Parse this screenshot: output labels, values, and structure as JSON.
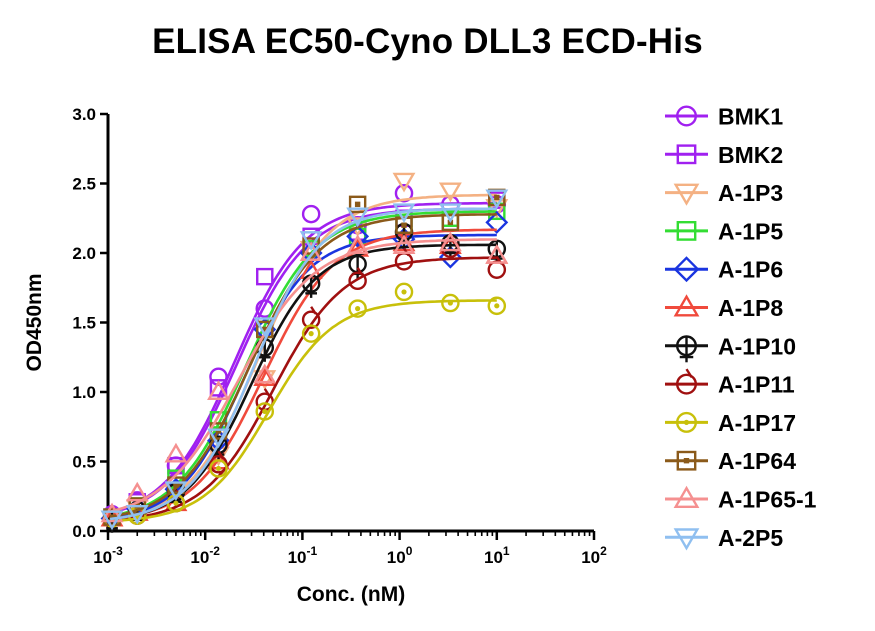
{
  "chart_data": {
    "type": "scatter",
    "title": "ELISA EC50-Cyno DLL3 ECD-His",
    "xlabel": "Conc. (nM)",
    "ylabel": "OD450nm",
    "x_scale": "log10",
    "xlim": [
      0.001,
      100
    ],
    "ylim": [
      0,
      3.0
    ],
    "x_tick_exponents": [
      "-3",
      "-2",
      "-1",
      "0",
      "1",
      "2"
    ],
    "x_tick_base": "10",
    "y_ticks": [
      "0.0",
      "0.5",
      "1.0",
      "1.5",
      "2.0",
      "2.5",
      "3.0"
    ],
    "legend_position": "right",
    "x": [
      0.0011,
      0.002,
      0.005,
      0.0137,
      0.041,
      0.123,
      0.37,
      1.11,
      3.33,
      10.0
    ],
    "series": [
      {
        "name": "BMK1",
        "color": "#a020f0",
        "marker": "circle",
        "values": [
          0.12,
          0.22,
          0.47,
          1.11,
          1.6,
          2.28,
          2.2,
          2.43,
          2.35,
          2.35
        ],
        "fit": {
          "bottom": 0.07,
          "top": 2.36,
          "ec50": 0.02,
          "hill": 1.2
        }
      },
      {
        "name": "BMK2",
        "color": "#a020f0",
        "marker": "square",
        "values": [
          0.1,
          0.21,
          0.47,
          1.03,
          1.83,
          2.12,
          2.15,
          2.25,
          2.22,
          2.38
        ],
        "fit": {
          "bottom": 0.07,
          "top": 2.32,
          "ec50": 0.021,
          "hill": 1.2
        }
      },
      {
        "name": "A-1P3",
        "color": "#f4b183",
        "marker": "triangle-down",
        "values": [
          0.09,
          0.17,
          0.27,
          0.55,
          1.1,
          2.03,
          2.2,
          2.52,
          2.45,
          2.33
        ],
        "fit": {
          "bottom": 0.06,
          "top": 2.42,
          "ec50": 0.035,
          "hill": 1.2
        }
      },
      {
        "name": "A-1P5",
        "color": "#33dd33",
        "marker": "square",
        "values": [
          0.1,
          0.18,
          0.38,
          0.8,
          1.45,
          2.03,
          2.12,
          2.2,
          2.25,
          2.3
        ],
        "fit": {
          "bottom": 0.06,
          "top": 2.3,
          "ec50": 0.026,
          "hill": 1.2
        }
      },
      {
        "name": "A-1P6",
        "color": "#1a35e0",
        "marker": "diamond",
        "values": [
          0.09,
          0.16,
          0.3,
          0.65,
          1.45,
          2.0,
          2.12,
          2.1,
          1.97,
          2.22
        ],
        "fit": {
          "bottom": 0.06,
          "top": 2.13,
          "ec50": 0.025,
          "hill": 1.3
        }
      },
      {
        "name": "A-1P8",
        "color": "#f04a3c",
        "marker": "triangle-up",
        "values": [
          0.09,
          0.13,
          0.2,
          0.5,
          1.1,
          1.87,
          2.03,
          2.07,
          2.05,
          1.98
        ],
        "fit": {
          "bottom": 0.06,
          "top": 2.17,
          "ec50": 0.04,
          "hill": 1.2
        }
      },
      {
        "name": "A-1P10",
        "color": "#111111",
        "marker": "cross-circle",
        "values": [
          0.09,
          0.15,
          0.28,
          0.62,
          1.32,
          1.78,
          1.92,
          2.15,
          2.07,
          2.03
        ],
        "fit": {
          "bottom": 0.06,
          "top": 2.06,
          "ec50": 0.03,
          "hill": 1.3
        }
      },
      {
        "name": "A-1P11",
        "color": "#a01010",
        "marker": "circle-tick",
        "values": [
          0.09,
          0.11,
          0.2,
          0.48,
          0.93,
          1.52,
          1.8,
          1.94,
          2.03,
          1.88
        ],
        "fit": {
          "bottom": 0.06,
          "top": 1.97,
          "ec50": 0.05,
          "hill": 1.2
        }
      },
      {
        "name": "A-1P17",
        "color": "#c8c00a",
        "marker": "circle-dot",
        "values": [
          0.09,
          0.11,
          0.2,
          0.45,
          0.86,
          1.42,
          1.6,
          1.72,
          1.64,
          1.62
        ],
        "fit": {
          "bottom": 0.06,
          "top": 1.66,
          "ec50": 0.045,
          "hill": 1.3
        }
      },
      {
        "name": "A-1P64",
        "color": "#8b5a1a",
        "marker": "square-dot",
        "values": [
          0.1,
          0.18,
          0.33,
          0.72,
          1.45,
          2.05,
          2.35,
          2.2,
          2.22,
          2.4
        ],
        "fit": {
          "bottom": 0.06,
          "top": 2.28,
          "ec50": 0.028,
          "hill": 1.2
        }
      },
      {
        "name": "A-1P65-1",
        "color": "#f59090",
        "marker": "triangle-up",
        "values": [
          0.12,
          0.27,
          0.55,
          1.0,
          1.12,
          2.0,
          2.05,
          2.05,
          2.07,
          1.98
        ],
        "fit": {
          "bottom": 0.07,
          "top": 2.1,
          "ec50": 0.022,
          "hill": 1.1
        }
      },
      {
        "name": "A-2P5",
        "color": "#8fbff0",
        "marker": "triangle-down",
        "values": [
          0.09,
          0.13,
          0.3,
          0.68,
          1.48,
          2.1,
          2.27,
          2.3,
          2.3,
          2.4
        ],
        "fit": {
          "bottom": 0.06,
          "top": 2.32,
          "ec50": 0.032,
          "hill": 1.3
        }
      }
    ]
  }
}
